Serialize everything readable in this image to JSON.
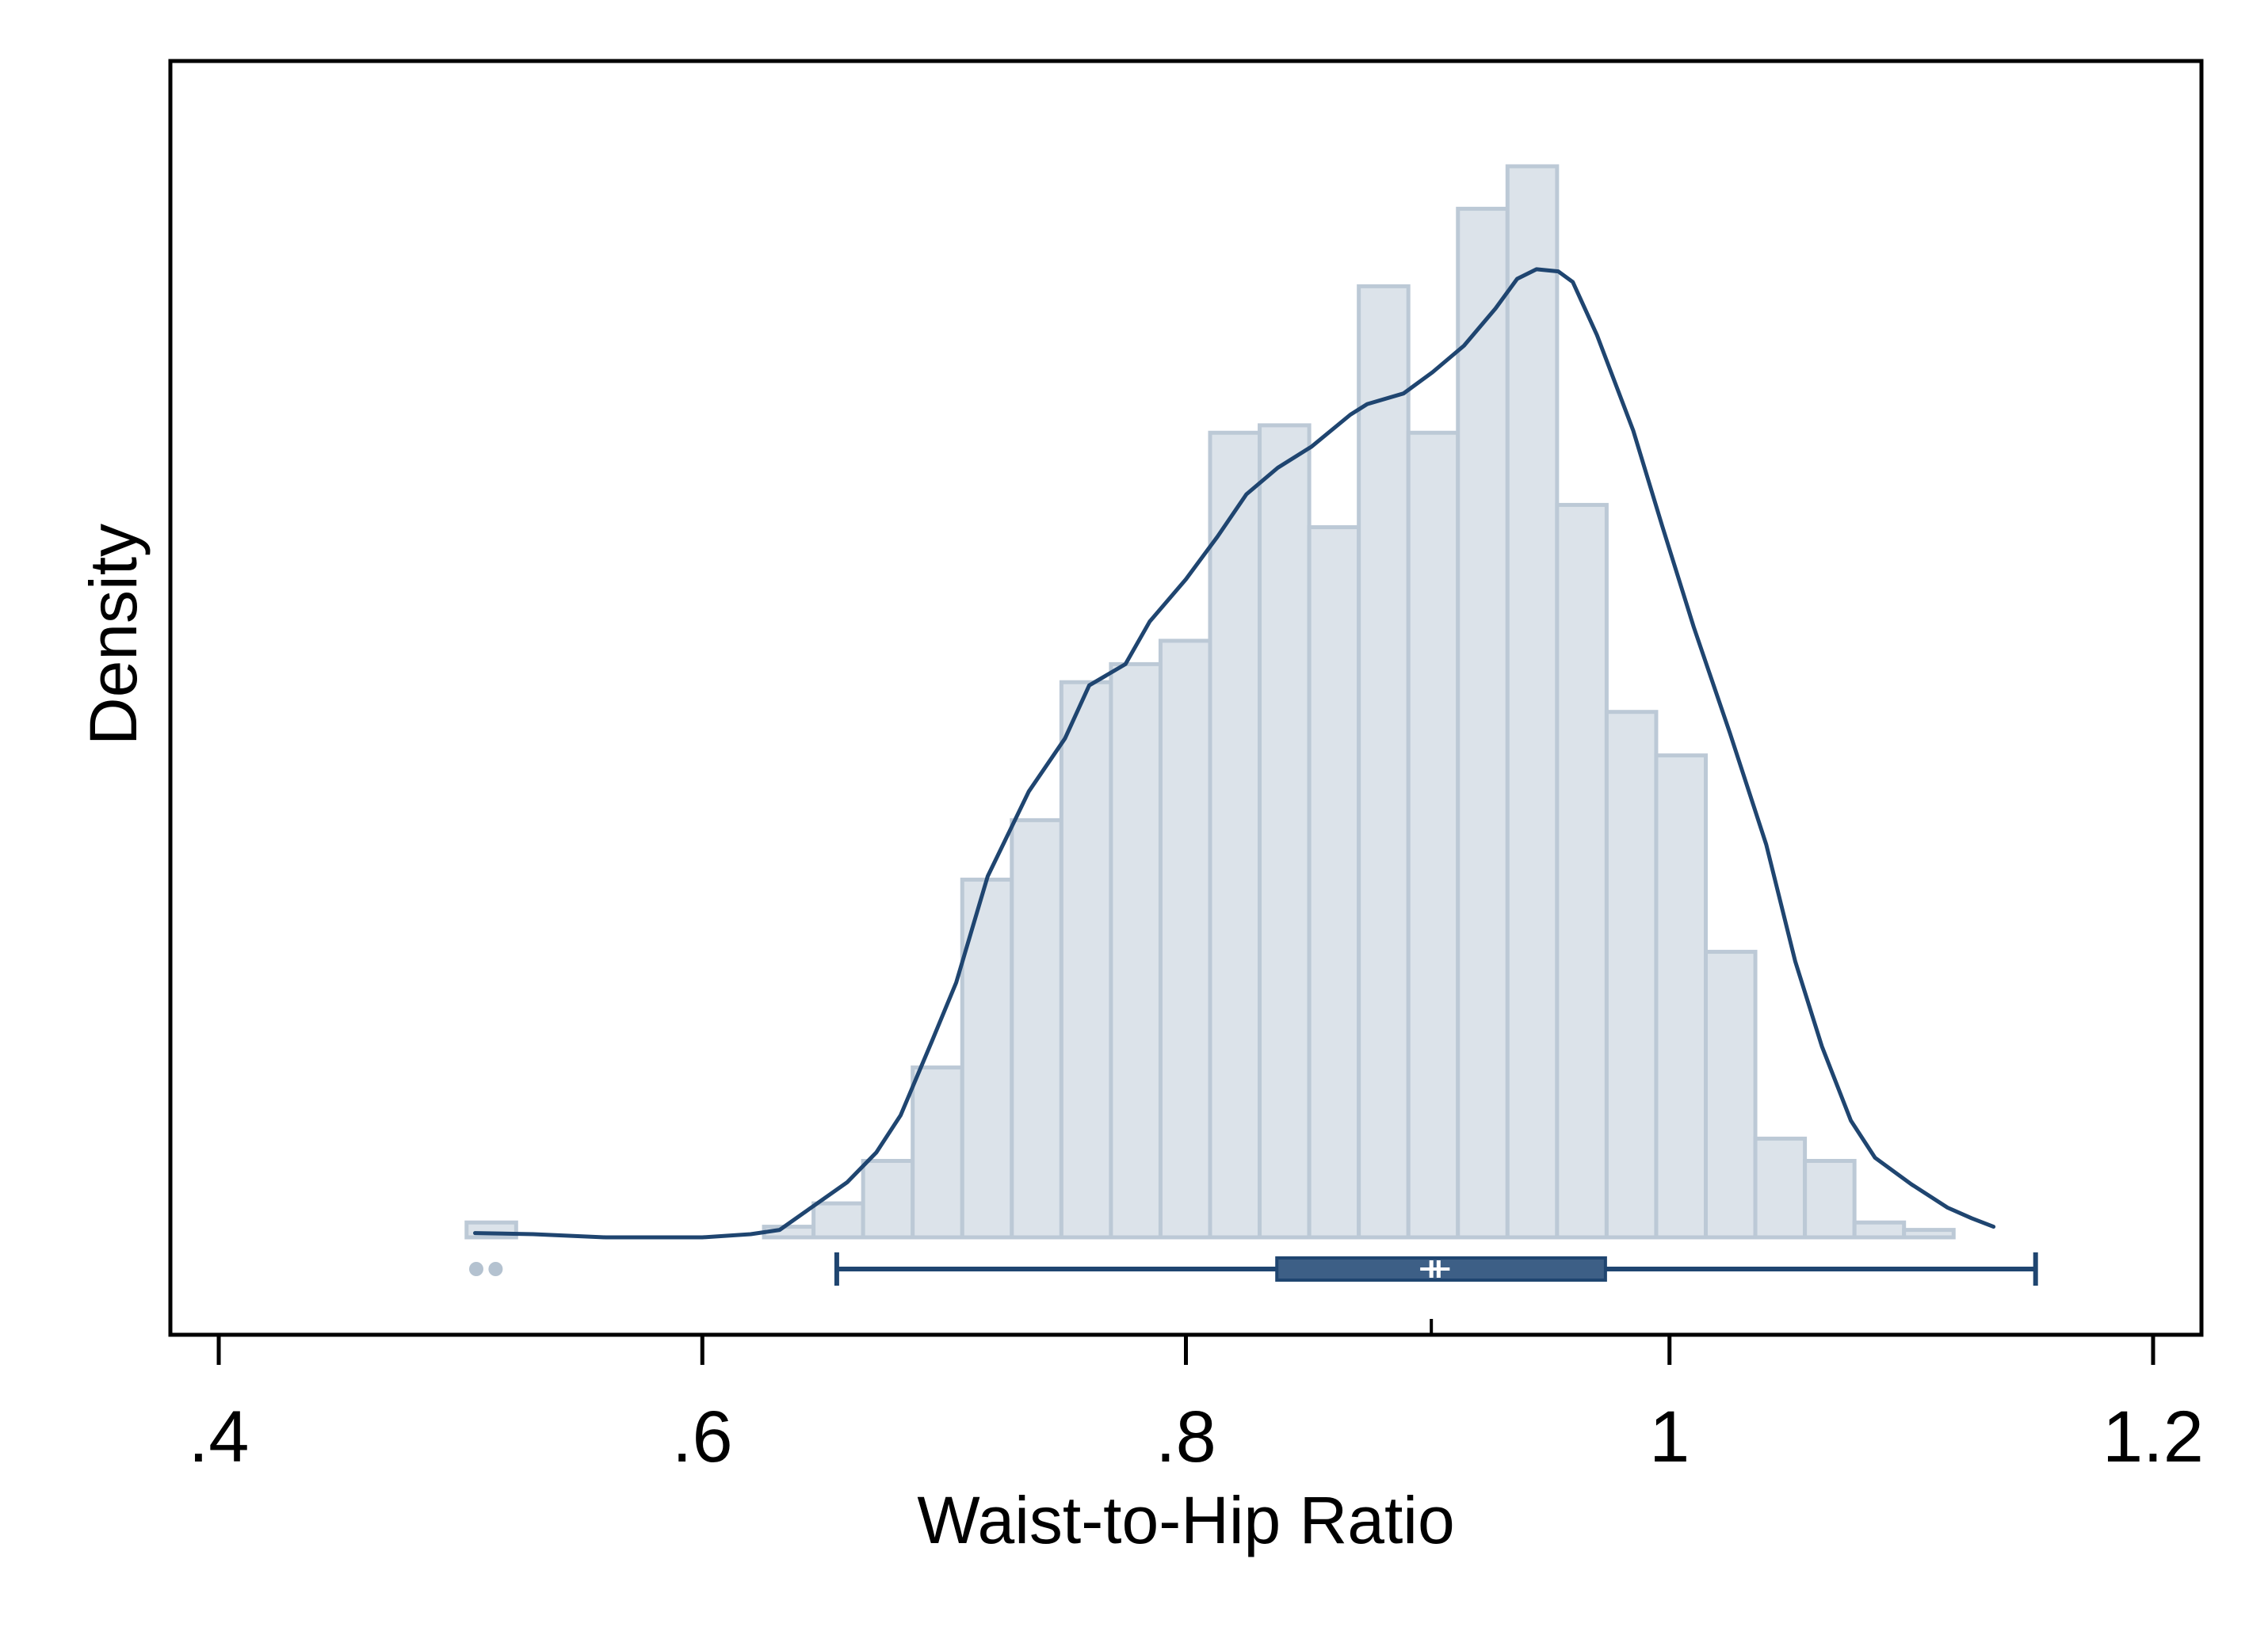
{
  "chart_data": {
    "type": "histogram",
    "title": "",
    "xlabel": "Waist-to-Hip Ratio",
    "ylabel": "Density",
    "xlim": [
      0.38,
      1.22
    ],
    "ylim": [
      0,
      1
    ],
    "x_ticks": [
      0.4,
      0.6,
      0.8,
      1.0,
      1.2
    ],
    "x_tick_labels": [
      ".4",
      ".6",
      ".8",
      "1",
      "1.2"
    ],
    "y_ticks_shown": false,
    "grid": false,
    "legend": "none",
    "histogram": {
      "bin_width": 0.0205,
      "bins": [
        {
          "start": 0.5025,
          "end": 0.523,
          "height": 0.014
        },
        {
          "start": 0.6255,
          "end": 0.646,
          "height": 0.01
        },
        {
          "start": 0.646,
          "end": 0.6665,
          "height": 0.032
        },
        {
          "start": 0.6665,
          "end": 0.687,
          "height": 0.072
        },
        {
          "start": 0.687,
          "end": 0.7075,
          "height": 0.16
        },
        {
          "start": 0.7075,
          "end": 0.728,
          "height": 0.337
        },
        {
          "start": 0.728,
          "end": 0.7485,
          "height": 0.393
        },
        {
          "start": 0.7485,
          "end": 0.769,
          "height": 0.523
        },
        {
          "start": 0.769,
          "end": 0.7895,
          "height": 0.54
        },
        {
          "start": 0.7895,
          "end": 0.81,
          "height": 0.562
        },
        {
          "start": 0.81,
          "end": 0.8305,
          "height": 0.758
        },
        {
          "start": 0.8305,
          "end": 0.851,
          "height": 0.765
        },
        {
          "start": 0.851,
          "end": 0.8715,
          "height": 0.669
        },
        {
          "start": 0.8715,
          "end": 0.892,
          "height": 0.896
        },
        {
          "start": 0.892,
          "end": 0.9125,
          "height": 0.758
        },
        {
          "start": 0.9125,
          "end": 0.933,
          "height": 0.969
        },
        {
          "start": 0.933,
          "end": 0.9535,
          "height": 1.009
        },
        {
          "start": 0.9535,
          "end": 0.974,
          "height": 0.69
        },
        {
          "start": 0.974,
          "end": 0.9945,
          "height": 0.495
        },
        {
          "start": 0.9945,
          "end": 1.015,
          "height": 0.454
        },
        {
          "start": 1.015,
          "end": 1.0355,
          "height": 0.269
        },
        {
          "start": 1.0355,
          "end": 1.056,
          "height": 0.093
        },
        {
          "start": 1.056,
          "end": 1.0765,
          "height": 0.072
        },
        {
          "start": 1.0765,
          "end": 1.097,
          "height": 0.014
        },
        {
          "start": 1.097,
          "end": 1.1175,
          "height": 0.007
        }
      ],
      "fill": "#dce3ea",
      "stroke": "#bcc9d6"
    },
    "density_curve": {
      "color": "#1f4570",
      "points": [
        [
          0.506,
          0.004
        ],
        [
          0.53,
          0.003
        ],
        [
          0.56,
          0.0
        ],
        [
          0.6,
          0.0
        ],
        [
          0.62,
          0.003
        ],
        [
          0.632,
          0.007
        ],
        [
          0.645,
          0.028
        ],
        [
          0.66,
          0.052
        ],
        [
          0.672,
          0.08
        ],
        [
          0.682,
          0.115
        ],
        [
          0.695,
          0.185
        ],
        [
          0.705,
          0.24
        ],
        [
          0.718,
          0.34
        ],
        [
          0.735,
          0.42
        ],
        [
          0.75,
          0.47
        ],
        [
          0.76,
          0.52
        ],
        [
          0.775,
          0.54
        ],
        [
          0.785,
          0.58
        ],
        [
          0.8,
          0.62
        ],
        [
          0.813,
          0.66
        ],
        [
          0.825,
          0.7
        ],
        [
          0.838,
          0.725
        ],
        [
          0.852,
          0.745
        ],
        [
          0.868,
          0.775
        ],
        [
          0.875,
          0.785
        ],
        [
          0.89,
          0.795
        ],
        [
          0.902,
          0.815
        ],
        [
          0.915,
          0.84
        ],
        [
          0.928,
          0.875
        ],
        [
          0.937,
          0.903
        ],
        [
          0.945,
          0.912
        ],
        [
          0.954,
          0.91
        ],
        [
          0.96,
          0.9
        ],
        [
          0.97,
          0.85
        ],
        [
          0.985,
          0.76
        ],
        [
          0.997,
          0.67
        ],
        [
          1.01,
          0.575
        ],
        [
          1.025,
          0.475
        ],
        [
          1.04,
          0.37
        ],
        [
          1.052,
          0.26
        ],
        [
          1.063,
          0.18
        ],
        [
          1.075,
          0.11
        ],
        [
          1.085,
          0.075
        ],
        [
          1.1,
          0.05
        ],
        [
          1.115,
          0.028
        ],
        [
          1.125,
          0.018
        ],
        [
          1.134,
          0.01
        ]
      ]
    },
    "boxplot": {
      "color": "#1f4570",
      "whisker_low": 0.6556,
      "q1": 0.8376,
      "median": 0.9015,
      "mean": 0.9045,
      "q3": 0.9735,
      "whisker_high": 1.1514,
      "outliers": [
        0.5065,
        0.5145
      ],
      "outlier_color": "#b4c2d0"
    }
  }
}
